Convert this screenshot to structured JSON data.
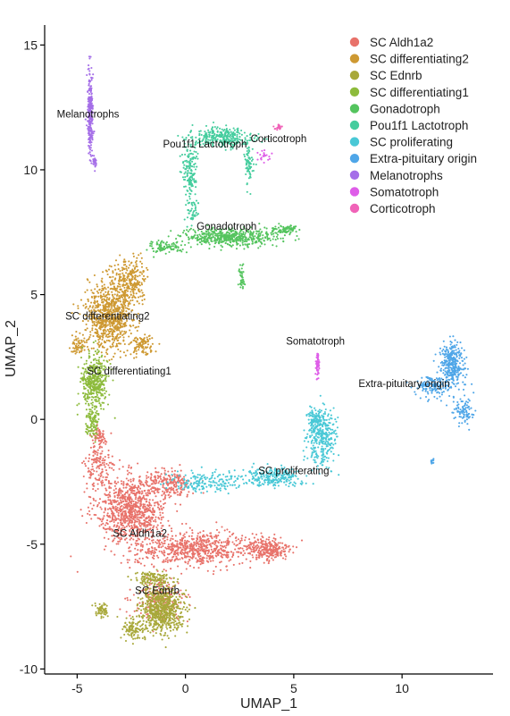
{
  "chart_data": {
    "type": "scatter",
    "title": "",
    "xlabel": "UMAP_1",
    "ylabel": "UMAP_2",
    "xlim": [
      -6.5,
      14.2
    ],
    "ylim": [
      -10.2,
      15.8
    ],
    "xticks": [
      -5,
      0,
      5,
      10
    ],
    "yticks": [
      -10,
      -5,
      0,
      5,
      10,
      15
    ],
    "grid": false,
    "legend_position": "top-right",
    "series": [
      {
        "name": "SC Aldh1a2",
        "color": "#E8726A",
        "blobs": [
          [
            -2.5,
            -3.6,
            1.6,
            1.3,
            900
          ],
          [
            0.5,
            -5.2,
            2.8,
            0.65,
            700
          ],
          [
            3.8,
            -5.2,
            1.0,
            0.5,
            250
          ],
          [
            -0.9,
            -2.6,
            1.3,
            0.6,
            220
          ],
          [
            -1.2,
            -7.2,
            1.2,
            0.8,
            200
          ],
          [
            -4.0,
            -1.8,
            0.6,
            0.9,
            150
          ],
          [
            -4.0,
            -0.6,
            0.3,
            0.4,
            60
          ]
        ]
      },
      {
        "name": "SC differentiating2",
        "color": "#CE9932",
        "blobs": [
          [
            -3.5,
            4.2,
            1.05,
            1.4,
            800
          ],
          [
            -2.5,
            5.6,
            0.8,
            0.8,
            250
          ],
          [
            -5.0,
            3.0,
            0.3,
            0.4,
            60
          ],
          [
            -2.0,
            3.0,
            0.6,
            0.4,
            100
          ]
        ]
      },
      {
        "name": "SC Ednrb",
        "color": "#A8A83A",
        "blobs": [
          [
            -1.1,
            -7.6,
            1.0,
            0.9,
            700
          ],
          [
            -3.9,
            -7.6,
            0.3,
            0.3,
            60
          ],
          [
            -2.4,
            -8.4,
            0.5,
            0.4,
            100
          ],
          [
            -1.5,
            -6.4,
            0.8,
            0.3,
            120
          ]
        ]
      },
      {
        "name": "SC differentiating1",
        "color": "#8DBB3C",
        "blobs": [
          [
            -4.2,
            1.5,
            0.6,
            1.1,
            400
          ],
          [
            -4.3,
            -0.2,
            0.3,
            0.6,
            90
          ]
        ]
      },
      {
        "name": "Gonadotroph",
        "color": "#54C45E",
        "blobs": [
          [
            2.0,
            7.3,
            2.2,
            0.35,
            500
          ],
          [
            -0.9,
            6.9,
            0.9,
            0.25,
            100
          ],
          [
            2.6,
            5.6,
            0.12,
            0.5,
            40
          ],
          [
            4.5,
            7.6,
            0.8,
            0.15,
            80
          ]
        ]
      },
      {
        "name": "Pou1f1 Lactotroph",
        "color": "#45CD9E",
        "blobs": [
          [
            1.7,
            11.3,
            1.4,
            0.4,
            300
          ],
          [
            0.2,
            10.0,
            0.35,
            1.1,
            150
          ],
          [
            2.9,
            10.2,
            0.2,
            0.9,
            70
          ],
          [
            0.3,
            8.4,
            0.3,
            0.5,
            50
          ]
        ]
      },
      {
        "name": "SC proliferating",
        "color": "#49C8D6",
        "blobs": [
          [
            6.3,
            -0.7,
            0.7,
            1.1,
            320
          ],
          [
            4.0,
            -2.3,
            1.4,
            0.35,
            250
          ],
          [
            1.0,
            -2.5,
            1.6,
            0.4,
            180
          ],
          [
            6.0,
            0.0,
            0.4,
            0.4,
            80
          ]
        ]
      },
      {
        "name": "Extra-pituitary origin",
        "color": "#4FA6E8",
        "blobs": [
          [
            12.3,
            2.2,
            0.55,
            0.9,
            320
          ],
          [
            11.4,
            1.3,
            0.8,
            0.4,
            150
          ],
          [
            12.8,
            0.3,
            0.5,
            0.6,
            90
          ],
          [
            11.4,
            -1.7,
            0.1,
            0.1,
            12
          ]
        ]
      },
      {
        "name": "Melanotrophs",
        "color": "#A56FE8",
        "blobs": [
          [
            -4.4,
            12.3,
            0.12,
            1.6,
            260
          ],
          [
            -4.2,
            10.3,
            0.07,
            0.25,
            25
          ]
        ]
      },
      {
        "name": "Somatotroph",
        "color": "#DE5DE8",
        "blobs": [
          [
            6.1,
            2.2,
            0.1,
            0.5,
            50
          ],
          [
            3.6,
            10.6,
            0.35,
            0.25,
            20
          ]
        ]
      },
      {
        "name": "Corticotroph",
        "color": "#F063B8",
        "blobs": [
          [
            4.3,
            11.7,
            0.22,
            0.12,
            25
          ]
        ]
      }
    ],
    "annotations": [
      {
        "text": "Melanotrophs",
        "x": -4.5,
        "y": 12.1
      },
      {
        "text": "Corticotroph",
        "x": 4.3,
        "y": 11.1
      },
      {
        "text": "Pou1f1 Lactotroph",
        "x": 0.9,
        "y": 10.9
      },
      {
        "text": "Gonadotroph",
        "x": 1.9,
        "y": 7.6
      },
      {
        "text": "SC differentiating2",
        "x": -3.6,
        "y": 4.0
      },
      {
        "text": "Somatotroph",
        "x": 6.0,
        "y": 3.0
      },
      {
        "text": "SC differentiating1",
        "x": -2.6,
        "y": 1.8
      },
      {
        "text": "Extra-pituitary origin",
        "x": 10.1,
        "y": 1.3
      },
      {
        "text": "SC proliferating",
        "x": 5.0,
        "y": -2.2
      },
      {
        "text": "SC Aldh1a2",
        "x": -2.1,
        "y": -4.7
      },
      {
        "text": "SC Ednrb",
        "x": -1.3,
        "y": -7.0
      }
    ]
  }
}
